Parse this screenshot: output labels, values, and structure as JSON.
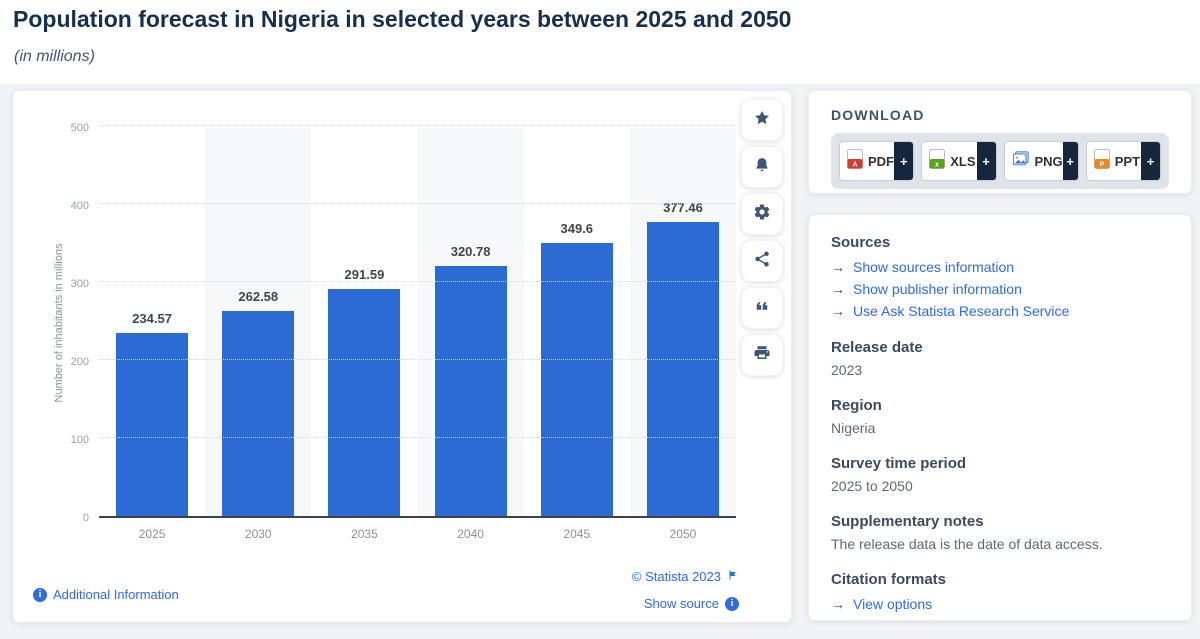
{
  "page": {
    "title": "Population forecast in Nigeria in selected years between 2025 and 2050",
    "subtitle": "(in millions)"
  },
  "chart_data": {
    "type": "bar",
    "title": "Population forecast in Nigeria in selected years between 2025 and 2050",
    "unit_note": "in millions",
    "categories": [
      "2025",
      "2030",
      "2035",
      "2040",
      "2045",
      "2050"
    ],
    "values": [
      234.57,
      262.58,
      291.59,
      320.78,
      349.6,
      377.46
    ],
    "value_labels": [
      "234.57",
      "262.58",
      "291.59",
      "320.78",
      "349.6",
      "377.46"
    ],
    "xlabel": "",
    "ylabel": "Number of inhabitants in millions",
    "ylim": [
      0,
      500
    ],
    "yticks": [
      0,
      100,
      200,
      300,
      400,
      500
    ],
    "grid": "horizontal dotted",
    "legend": "none",
    "bar_color": "#2a6cd3",
    "alt_band_color": "#f7f8fa"
  },
  "toolbar": {
    "buttons": [
      {
        "name": "favorite",
        "icon": "star-icon"
      },
      {
        "name": "alert",
        "icon": "bell-icon"
      },
      {
        "name": "settings",
        "icon": "gear-icon"
      },
      {
        "name": "share",
        "icon": "share-icon"
      },
      {
        "name": "cite",
        "icon": "quote-icon"
      },
      {
        "name": "print",
        "icon": "printer-icon"
      }
    ]
  },
  "chart_footer": {
    "additional_information": "Additional Information",
    "copyright": "© Statista 2023",
    "show_source": "Show source"
  },
  "download": {
    "heading": "DOWNLOAD",
    "plus": "+",
    "formats": [
      {
        "label": "PDF",
        "icon_color": "#d63b2f"
      },
      {
        "label": "XLS",
        "icon_color": "#56a41f"
      },
      {
        "label": "PNG",
        "icon_color": "#3a6fd8"
      },
      {
        "label": "PPT",
        "icon_color": "#e8871e"
      }
    ]
  },
  "details": {
    "sources": {
      "heading": "Sources",
      "links": [
        "Show sources information",
        "Show publisher information",
        "Use Ask Statista Research Service"
      ]
    },
    "sections": [
      {
        "heading": "Release date",
        "text": "2023"
      },
      {
        "heading": "Region",
        "text": "Nigeria"
      },
      {
        "heading": "Survey time period",
        "text": "2025 to 2050"
      },
      {
        "heading": "Supplementary notes",
        "text": "The release data is the date of data access."
      }
    ],
    "citation": {
      "heading": "Citation formats",
      "link": "View options"
    }
  }
}
